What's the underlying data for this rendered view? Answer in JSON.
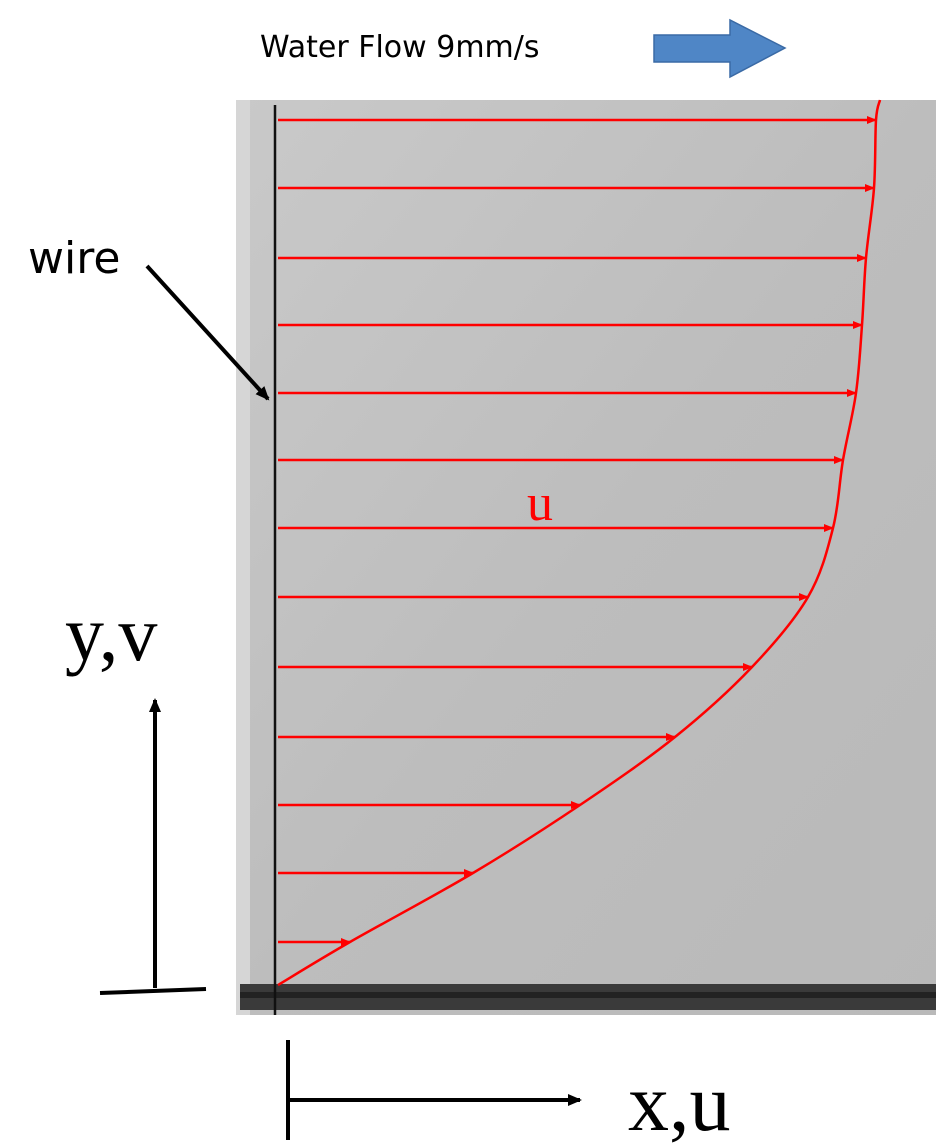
{
  "header": {
    "title": "Water Flow 9mm/s"
  },
  "labels": {
    "wire": "wire",
    "velocity": "u",
    "y_axis": "y,v",
    "x_axis": "x,u"
  }
}
